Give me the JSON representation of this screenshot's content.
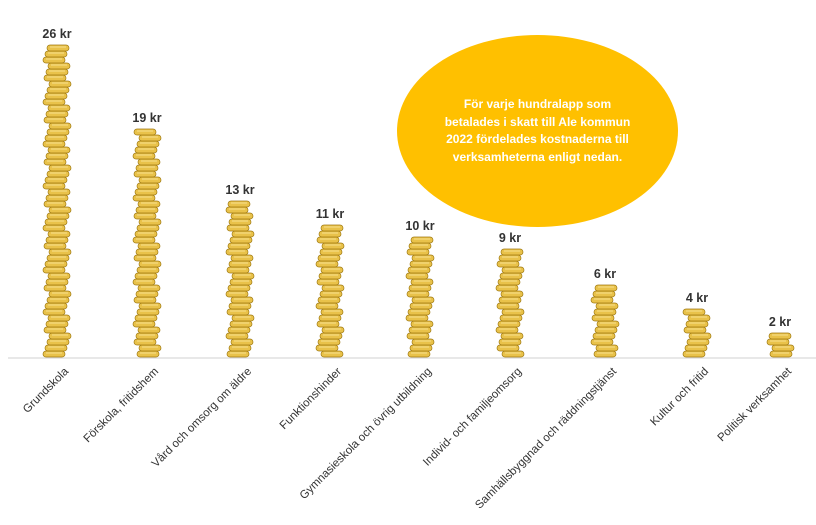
{
  "info_text": "För varje hundralapp som betalades i skatt till Ale kommun 2022 fördelades kostnaderna till verksamheterna enligt nedan.",
  "colors": {
    "coin_fill": "#e9c24a",
    "coin_edge": "#a07a12",
    "coin_top": "#f7e08e",
    "bubble": "#ffc000",
    "axis": "#d0d0d0",
    "text": "#333333"
  },
  "chart_data": {
    "type": "bar",
    "style": "stacked coins",
    "title": "",
    "xlabel": "",
    "ylabel": "",
    "unit": "kr",
    "categories": [
      "Grundskola",
      "Förskola, fritidshem",
      "Vård och omsorg om äldre",
      "Funktionshinder",
      "Gymnasieskola och övrig utbildning",
      "Individ- och familjeomsorg",
      "Samhällsbyggnad och räddningstjänst",
      "Kultur och fritid",
      "Politisk verksamhet"
    ],
    "values": [
      26,
      19,
      13,
      11,
      10,
      9,
      6,
      4,
      2
    ],
    "value_labels": [
      "26 kr",
      "19 kr",
      "13 kr",
      "11 kr",
      "10 kr",
      "9 kr",
      "6 kr",
      "4 kr",
      "2 kr"
    ],
    "ylim": [
      0,
      26
    ],
    "grid": false,
    "legend": "none"
  }
}
